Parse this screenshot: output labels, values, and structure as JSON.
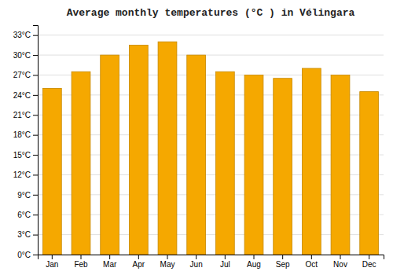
{
  "chart_data": {
    "type": "bar",
    "title": "Average monthly temperatures (°C ) in Vélingara",
    "categories": [
      "Jan",
      "Feb",
      "Mar",
      "Apr",
      "May",
      "Jun",
      "Jul",
      "Aug",
      "Sep",
      "Oct",
      "Nov",
      "Dec"
    ],
    "values": [
      25.0,
      27.5,
      30.0,
      31.5,
      32.0,
      30.0,
      27.5,
      27.0,
      26.5,
      28.0,
      27.0,
      24.5
    ],
    "color": "#F5A800",
    "ylim": [
      0,
      34.5
    ],
    "yticks": [
      {
        "value": 0,
        "label": "0°C"
      },
      {
        "value": 3,
        "label": "3°C"
      },
      {
        "value": 6,
        "label": "6°C"
      },
      {
        "value": 9,
        "label": "9°C"
      },
      {
        "value": 12,
        "label": "12°C"
      },
      {
        "value": 15,
        "label": "15°C"
      },
      {
        "value": 18,
        "label": "18°C"
      },
      {
        "value": 21,
        "label": "21°C"
      },
      {
        "value": 24,
        "label": "24°C"
      },
      {
        "value": 27,
        "label": "27°C"
      },
      {
        "value": 30,
        "label": "30°C"
      },
      {
        "value": 33,
        "label": "33°C"
      }
    ],
    "grid": true
  }
}
